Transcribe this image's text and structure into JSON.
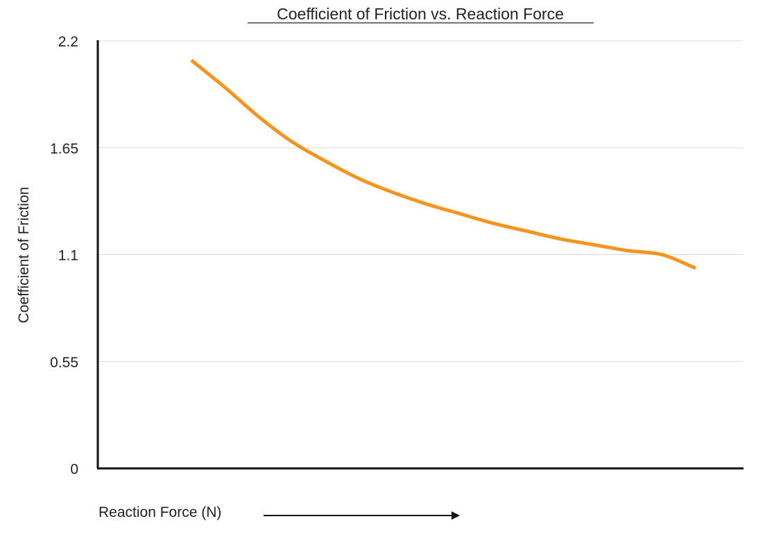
{
  "chart_data": {
    "type": "line",
    "title": "Coefficient of Friction vs. Reaction Force",
    "xlabel": "Reaction Force (N)",
    "ylabel": "Coefficient of Friction",
    "ylim": [
      0,
      2.2
    ],
    "y_ticks": [
      "0",
      "0.55",
      "1.1",
      "1.65",
      "2.2"
    ],
    "grid": true,
    "x_tick_labels": false,
    "series": [
      {
        "color": "#F7941D",
        "x": [
          1,
          2,
          3,
          4,
          5,
          6,
          7,
          8,
          9,
          10,
          11,
          12,
          13,
          14,
          15,
          16
        ],
        "y": [
          2.1,
          1.96,
          1.81,
          1.68,
          1.58,
          1.49,
          1.42,
          1.36,
          1.31,
          1.26,
          1.22,
          1.18,
          1.15,
          1.12,
          1.1,
          1.03
        ]
      }
    ]
  }
}
